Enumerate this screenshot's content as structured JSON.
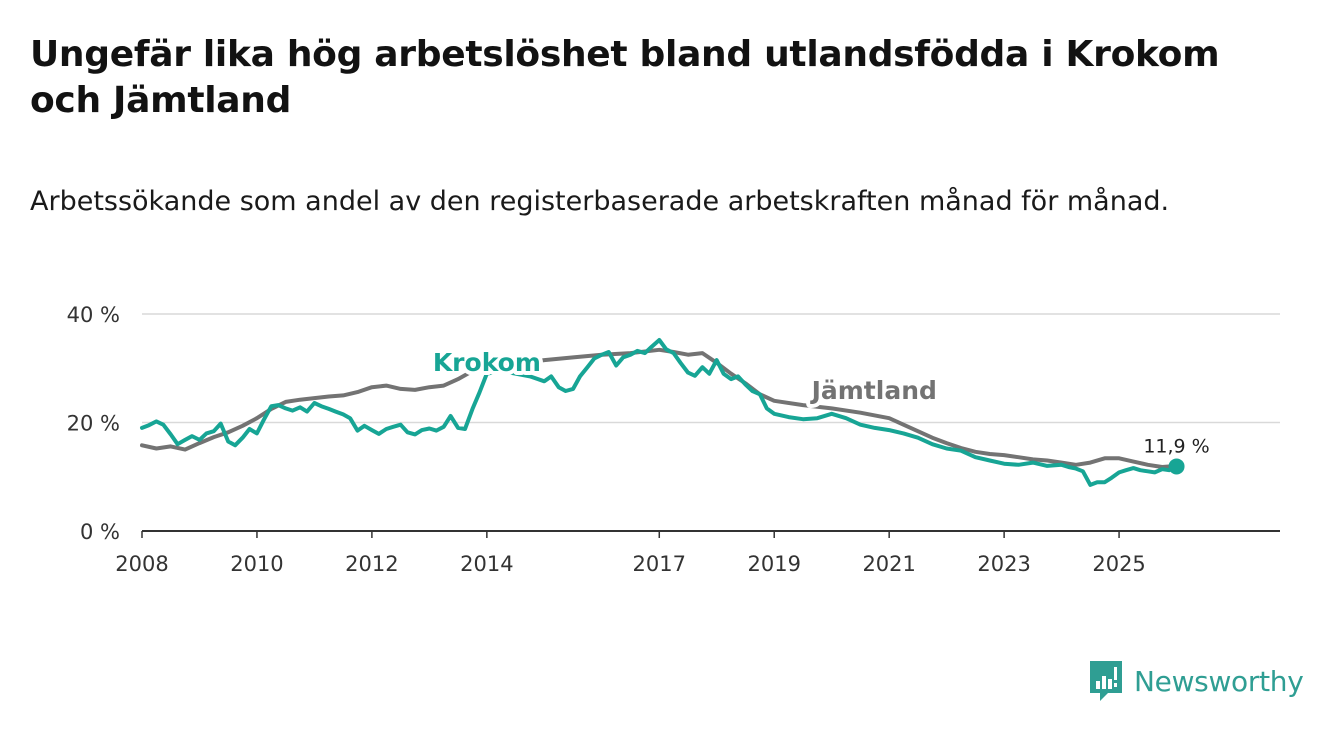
{
  "title": "Ungefär lika hög arbetslöshet bland utlandsfödda i Krokom och Jämtland",
  "subtitle": "Arbetssökande som andel av den registerbaserade arbetskraften månad för månad.",
  "brand": {
    "name": "Newsworthy",
    "icon": "newsworthy-logo-icon",
    "color": "#2f9e93"
  },
  "chart_data": {
    "type": "line",
    "xlabel": "",
    "ylabel": "",
    "ylim": [
      0,
      40
    ],
    "yticks": [
      0,
      20,
      40
    ],
    "ytick_labels": [
      "0 %",
      "20 %",
      "40 %"
    ],
    "xlim": [
      2008,
      2027.8
    ],
    "xticks": [
      2008,
      2010,
      2012,
      2014,
      2017,
      2019,
      2021,
      2023,
      2025
    ],
    "xtick_labels": [
      "2008",
      "2010",
      "2012",
      "2014",
      "2017",
      "2019",
      "2021",
      "2023",
      "2025"
    ],
    "grid": true,
    "end_label": "11,9 %",
    "series": [
      {
        "name": "Jämtland",
        "label": "Jämtland",
        "color": "#737373",
        "x": [
          2008.0,
          2008.25,
          2008.5,
          2008.75,
          2009.0,
          2009.25,
          2009.5,
          2009.75,
          2010.0,
          2010.25,
          2010.5,
          2010.75,
          2011.0,
          2011.25,
          2011.5,
          2011.75,
          2012.0,
          2012.25,
          2012.5,
          2012.75,
          2013.0,
          2013.25,
          2013.5,
          2013.75,
          2014.0,
          2014.5,
          2015.0,
          2015.5,
          2016.0,
          2016.5,
          2017.0,
          2017.25,
          2017.5,
          2017.75,
          2018.0,
          2018.25,
          2018.5,
          2018.75,
          2019.0,
          2019.5,
          2020.0,
          2020.5,
          2021.0,
          2021.25,
          2021.5,
          2021.75,
          2022.0,
          2022.25,
          2022.5,
          2022.75,
          2023.0,
          2023.25,
          2023.5,
          2023.75,
          2024.0,
          2024.25,
          2024.5,
          2024.75,
          2025.0,
          2025.25,
          2025.5,
          2025.75,
          2026.0
        ],
        "values": [
          15.8,
          15.2,
          15.6,
          15.0,
          16.2,
          17.3,
          18.2,
          19.4,
          20.8,
          22.5,
          23.8,
          24.2,
          24.5,
          24.8,
          25.0,
          25.6,
          26.5,
          26.8,
          26.2,
          26.0,
          26.5,
          26.8,
          28.0,
          29.5,
          30.2,
          30.8,
          31.5,
          32.0,
          32.5,
          32.8,
          33.4,
          33.0,
          32.5,
          32.8,
          31.0,
          29.0,
          27.2,
          25.2,
          24.0,
          23.2,
          22.6,
          21.8,
          20.8,
          19.6,
          18.4,
          17.2,
          16.2,
          15.3,
          14.6,
          14.2,
          14.0,
          13.6,
          13.2,
          13.0,
          12.6,
          12.2,
          12.6,
          13.4,
          13.4,
          12.8,
          12.2,
          11.8,
          12.0
        ]
      },
      {
        "name": "Krokom",
        "label": "Krokom",
        "color": "#17a595",
        "x": [
          2008.0,
          2008.12,
          2008.25,
          2008.37,
          2008.5,
          2008.62,
          2008.75,
          2008.87,
          2009.0,
          2009.12,
          2009.25,
          2009.37,
          2009.5,
          2009.62,
          2009.75,
          2009.87,
          2010.0,
          2010.12,
          2010.25,
          2010.37,
          2010.5,
          2010.62,
          2010.75,
          2010.87,
          2011.0,
          2011.12,
          2011.25,
          2011.37,
          2011.5,
          2011.62,
          2011.75,
          2011.87,
          2012.0,
          2012.12,
          2012.25,
          2012.37,
          2012.5,
          2012.62,
          2012.75,
          2012.87,
          2013.0,
          2013.12,
          2013.25,
          2013.37,
          2013.5,
          2013.62,
          2013.75,
          2013.87,
          2014.0,
          2014.25,
          2014.5,
          2014.75,
          2015.0,
          2015.12,
          2015.25,
          2015.37,
          2015.5,
          2015.62,
          2015.75,
          2015.87,
          2016.0,
          2016.12,
          2016.25,
          2016.37,
          2016.5,
          2016.62,
          2016.75,
          2016.87,
          2017.0,
          2017.12,
          2017.25,
          2017.37,
          2017.5,
          2017.62,
          2017.75,
          2017.87,
          2018.0,
          2018.12,
          2018.25,
          2018.37,
          2018.5,
          2018.62,
          2018.75,
          2018.87,
          2019.0,
          2019.25,
          2019.5,
          2019.75,
          2020.0,
          2020.25,
          2020.5,
          2020.75,
          2021.0,
          2021.25,
          2021.5,
          2021.75,
          2022.0,
          2022.25,
          2022.5,
          2022.75,
          2023.0,
          2023.25,
          2023.5,
          2023.75,
          2024.0,
          2024.12,
          2024.25,
          2024.37,
          2024.5,
          2024.62,
          2024.75,
          2024.87,
          2025.0,
          2025.12,
          2025.25,
          2025.37,
          2025.5,
          2025.62,
          2025.75,
          2025.87,
          2026.0
        ],
        "values": [
          19.0,
          19.5,
          20.2,
          19.6,
          17.8,
          16.0,
          16.8,
          17.5,
          16.8,
          18.0,
          18.4,
          19.8,
          16.5,
          15.8,
          17.2,
          18.8,
          18.0,
          20.5,
          23.0,
          23.2,
          22.6,
          22.2,
          22.8,
          22.0,
          23.6,
          23.0,
          22.5,
          22.0,
          21.5,
          20.8,
          18.5,
          19.4,
          18.6,
          17.9,
          18.8,
          19.2,
          19.6,
          18.2,
          17.8,
          18.6,
          18.9,
          18.5,
          19.2,
          21.2,
          19.0,
          18.8,
          22.5,
          25.5,
          29.0,
          29.5,
          29.0,
          28.5,
          27.6,
          28.5,
          26.5,
          25.8,
          26.2,
          28.5,
          30.2,
          31.8,
          32.5,
          33.0,
          30.5,
          32.0,
          32.5,
          33.2,
          32.8,
          34.0,
          35.2,
          33.5,
          32.8,
          31.0,
          29.2,
          28.6,
          30.2,
          29.0,
          31.5,
          29.0,
          28.0,
          28.5,
          27.0,
          25.8,
          25.2,
          22.6,
          21.6,
          21.0,
          20.6,
          20.8,
          21.6,
          20.8,
          19.6,
          19.0,
          18.6,
          18.0,
          17.2,
          16.0,
          15.2,
          14.8,
          13.6,
          13.0,
          12.4,
          12.2,
          12.6,
          12.0,
          12.2,
          11.8,
          11.5,
          11.0,
          8.5,
          9.0,
          9.0,
          9.8,
          10.8,
          11.2,
          11.6,
          11.2,
          11.0,
          10.8,
          11.4,
          11.2,
          11.9
        ]
      }
    ]
  }
}
